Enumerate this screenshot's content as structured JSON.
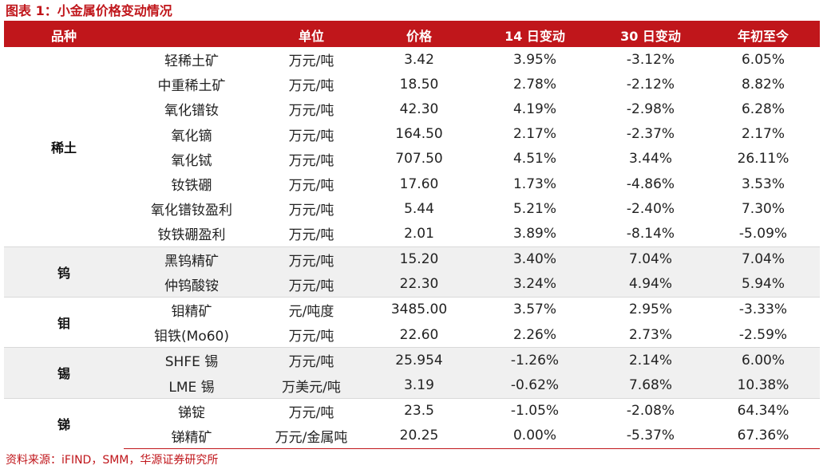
{
  "title": "图表 1：小金属价格变动情况",
  "table": {
    "headers": [
      "品种",
      "",
      "单位",
      "价格",
      "14 日变动",
      "30 日变动",
      "年初至今"
    ],
    "groups": [
      {
        "category": "稀土",
        "rows": [
          {
            "name": "轻稀土矿",
            "unit": "万元/吨",
            "price": "3.42",
            "d14": "3.95%",
            "d30": "-3.12%",
            "ytd": "6.05%"
          },
          {
            "name": "中重稀土矿",
            "unit": "万元/吨",
            "price": "18.50",
            "d14": "2.78%",
            "d30": "-2.12%",
            "ytd": "8.82%"
          },
          {
            "name": "氧化镨钕",
            "unit": "万元/吨",
            "price": "42.30",
            "d14": "4.19%",
            "d30": "-2.98%",
            "ytd": "6.28%"
          },
          {
            "name": "氧化镝",
            "unit": "万元/吨",
            "price": "164.50",
            "d14": "2.17%",
            "d30": "-2.37%",
            "ytd": "2.17%"
          },
          {
            "name": "氧化铽",
            "unit": "万元/吨",
            "price": "707.50",
            "d14": "4.51%",
            "d30": "3.44%",
            "ytd": "26.11%"
          },
          {
            "name": "钕铁硼",
            "unit": "万元/吨",
            "price": "17.60",
            "d14": "1.73%",
            "d30": "-4.86%",
            "ytd": "3.53%"
          },
          {
            "name": "氧化镨钕盈利",
            "unit": "万元/吨",
            "price": "5.44",
            "d14": "5.21%",
            "d30": "-2.40%",
            "ytd": "7.30%"
          },
          {
            "name": "钕铁硼盈利",
            "unit": "万元/吨",
            "price": "2.01",
            "d14": "3.89%",
            "d30": "-8.14%",
            "ytd": "-5.09%"
          }
        ]
      },
      {
        "category": "钨",
        "rows": [
          {
            "name": "黑钨精矿",
            "unit": "万元/吨",
            "price": "15.20",
            "d14": "3.40%",
            "d30": "7.04%",
            "ytd": "7.04%"
          },
          {
            "name": "仲钨酸铵",
            "unit": "万元/吨",
            "price": "22.30",
            "d14": "3.24%",
            "d30": "4.94%",
            "ytd": "5.94%"
          }
        ]
      },
      {
        "category": "钼",
        "rows": [
          {
            "name": "钼精矿",
            "unit": "元/吨度",
            "price": "3485.00",
            "d14": "3.57%",
            "d30": "2.95%",
            "ytd": "-3.33%"
          },
          {
            "name": "钼铁(Mo60)",
            "unit": "万元/吨",
            "price": "22.60",
            "d14": "2.26%",
            "d30": "2.73%",
            "ytd": "-2.59%"
          }
        ]
      },
      {
        "category": "锡",
        "rows": [
          {
            "name": "SHFE 锡",
            "unit": "万元/吨",
            "price": "25.954",
            "d14": "-1.26%",
            "d30": "2.14%",
            "ytd": "6.00%"
          },
          {
            "name": "LME 锡",
            "unit": "万美元/吨",
            "price": "3.19",
            "d14": "-0.62%",
            "d30": "7.68%",
            "ytd": "10.38%"
          }
        ]
      },
      {
        "category": "锑",
        "rows": [
          {
            "name": "锑锭",
            "unit": "万元/吨",
            "price": "23.5",
            "d14": "-1.05%",
            "d30": "-2.08%",
            "ytd": "64.34%"
          },
          {
            "name": "锑精矿",
            "unit": "万元/金属吨",
            "price": "20.25",
            "d14": "0.00%",
            "d30": "-5.37%",
            "ytd": "67.36%"
          }
        ]
      }
    ]
  },
  "source": "资料来源：iFIND，SMM，华源证券研究所",
  "colors": {
    "accent": "#c0161b",
    "band": "#f0f0f0",
    "text": "#222222"
  }
}
